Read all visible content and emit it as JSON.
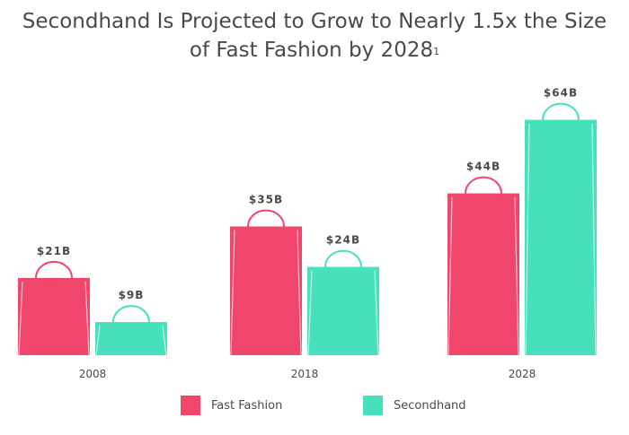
{
  "title": {
    "line1": "Secondhand Is Projected to Grow to Nearly 1.5x the Size",
    "line2": "of Fast Fashion by 2028",
    "footnote": "1"
  },
  "colors": {
    "fast_fashion": "#f0466b",
    "secondhand": "#47e0bd",
    "text": "#4a4a4a"
  },
  "chart_data": {
    "type": "bar",
    "categories": [
      "2008",
      "2018",
      "2028"
    ],
    "series": [
      {
        "name": "Fast Fashion",
        "values": [
          21,
          35,
          44
        ],
        "labels": [
          "$21B",
          "$35B",
          "$44B"
        ]
      },
      {
        "name": "Secondhand",
        "values": [
          9,
          24,
          64
        ],
        "labels": [
          "$9B",
          "$24B",
          "$64B"
        ]
      }
    ],
    "unit": "$B",
    "legend_position": "bottom",
    "grid": false
  },
  "legend": {
    "fast_fashion": "Fast Fashion",
    "secondhand": "Secondhand"
  }
}
